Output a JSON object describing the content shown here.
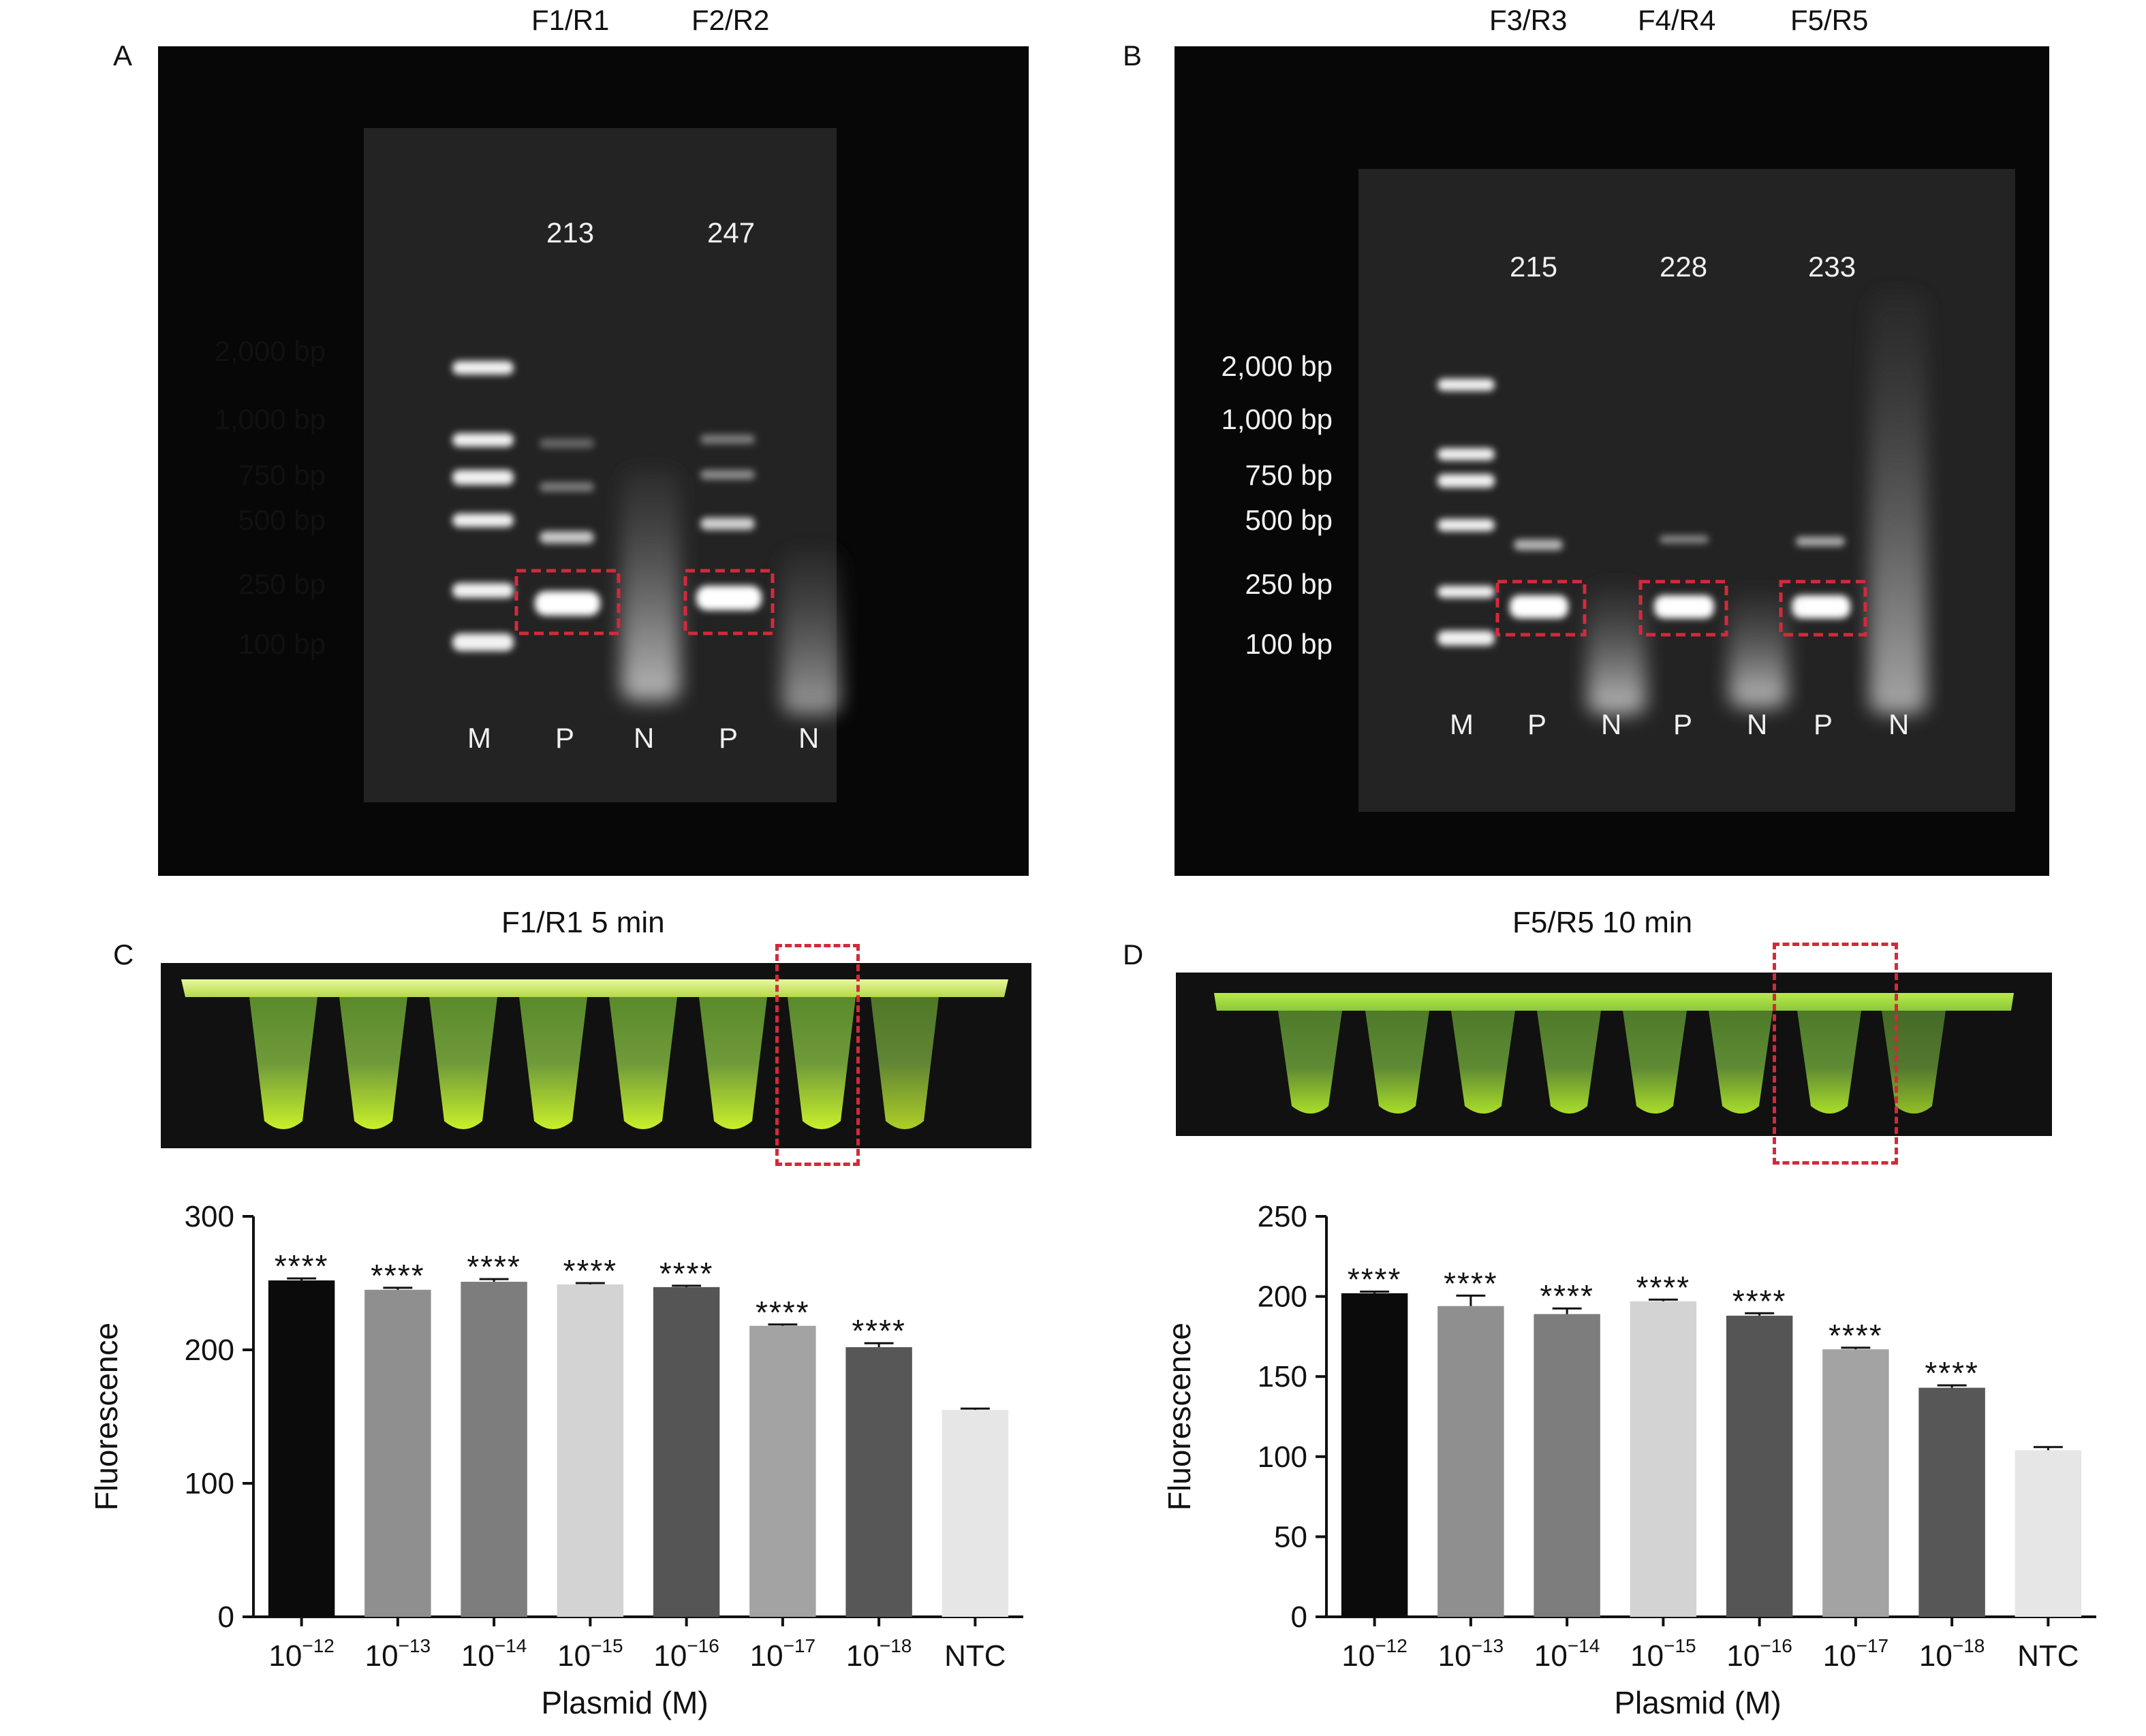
{
  "panels": {
    "A": {
      "letter": "A",
      "primer_labels": [
        "F1/R1",
        "F2/R2"
      ],
      "sizes": [
        "213",
        "247"
      ],
      "ladder": [
        "2,000 bp",
        "1,000 bp",
        "750 bp",
        "500 bp",
        "250 bp",
        "100 bp"
      ],
      "lanes": [
        "M",
        "P",
        "N",
        "P",
        "N"
      ]
    },
    "B": {
      "letter": "B",
      "primer_labels": [
        "F3/R3",
        "F4/R4",
        "F5/R5"
      ],
      "sizes": [
        "215",
        "228",
        "233"
      ],
      "ladder": [
        "2,000 bp",
        "1,000 bp",
        "750 bp",
        "500 bp",
        "250 bp",
        "100 bp"
      ],
      "lanes": [
        "M",
        "P",
        "N",
        "P",
        "N",
        "P",
        "N"
      ]
    },
    "C": {
      "letter": "C",
      "title": "F1/R1 5 min"
    },
    "D": {
      "letter": "D",
      "title": "F5/R5 10 min"
    }
  },
  "colors": {
    "bars": [
      "#0b0b0b",
      "#8f8f8f",
      "#7d7d7d",
      "#d3d3d3",
      "#555555",
      "#a3a3a3",
      "#575757",
      "#e6e6e6"
    ],
    "gel_bg": "#0a0a0a",
    "highlight": "#d32a3a",
    "tube_green": "#a8e01e"
  },
  "chart_data": [
    {
      "type": "bar",
      "panel": "C",
      "categories": [
        {
          "base": "10",
          "exp": "−12"
        },
        {
          "base": "10",
          "exp": "−13"
        },
        {
          "base": "10",
          "exp": "−14"
        },
        {
          "base": "10",
          "exp": "−15"
        },
        {
          "base": "10",
          "exp": "−16"
        },
        {
          "base": "10",
          "exp": "−17"
        },
        {
          "base": "10",
          "exp": "−18"
        },
        {
          "base": "NTC",
          "exp": ""
        }
      ],
      "values": [
        252,
        245,
        251,
        249,
        247,
        218,
        202,
        155
      ],
      "errors": [
        1.5,
        1.5,
        2.0,
        1.0,
        1.0,
        1.0,
        3.0,
        1.0
      ],
      "significance": [
        "****",
        "****",
        "****",
        "****",
        "****",
        "****",
        "****",
        ""
      ],
      "xlabel": "Plasmid (M)",
      "ylabel": "Fluorescence",
      "ylim": [
        0,
        300
      ],
      "yticks": [
        0,
        100,
        200,
        300
      ]
    },
    {
      "type": "bar",
      "panel": "D",
      "categories": [
        {
          "base": "10",
          "exp": "−12"
        },
        {
          "base": "10",
          "exp": "−13"
        },
        {
          "base": "10",
          "exp": "−14"
        },
        {
          "base": "10",
          "exp": "−15"
        },
        {
          "base": "10",
          "exp": "−16"
        },
        {
          "base": "10",
          "exp": "−17"
        },
        {
          "base": "10",
          "exp": "−18"
        },
        {
          "base": "NTC",
          "exp": ""
        }
      ],
      "values": [
        202,
        194,
        189,
        197,
        188,
        167,
        143,
        104
      ],
      "errors": [
        1.0,
        6.5,
        3.5,
        1.0,
        1.5,
        1.0,
        1.5,
        2.0
      ],
      "significance": [
        "****",
        "****",
        "****",
        "****",
        "****",
        "****",
        "****",
        ""
      ],
      "xlabel": "Plasmid (M)",
      "ylabel": "Fluorescence",
      "ylim": [
        0,
        250
      ],
      "yticks": [
        0,
        50,
        100,
        150,
        200,
        250
      ]
    }
  ]
}
